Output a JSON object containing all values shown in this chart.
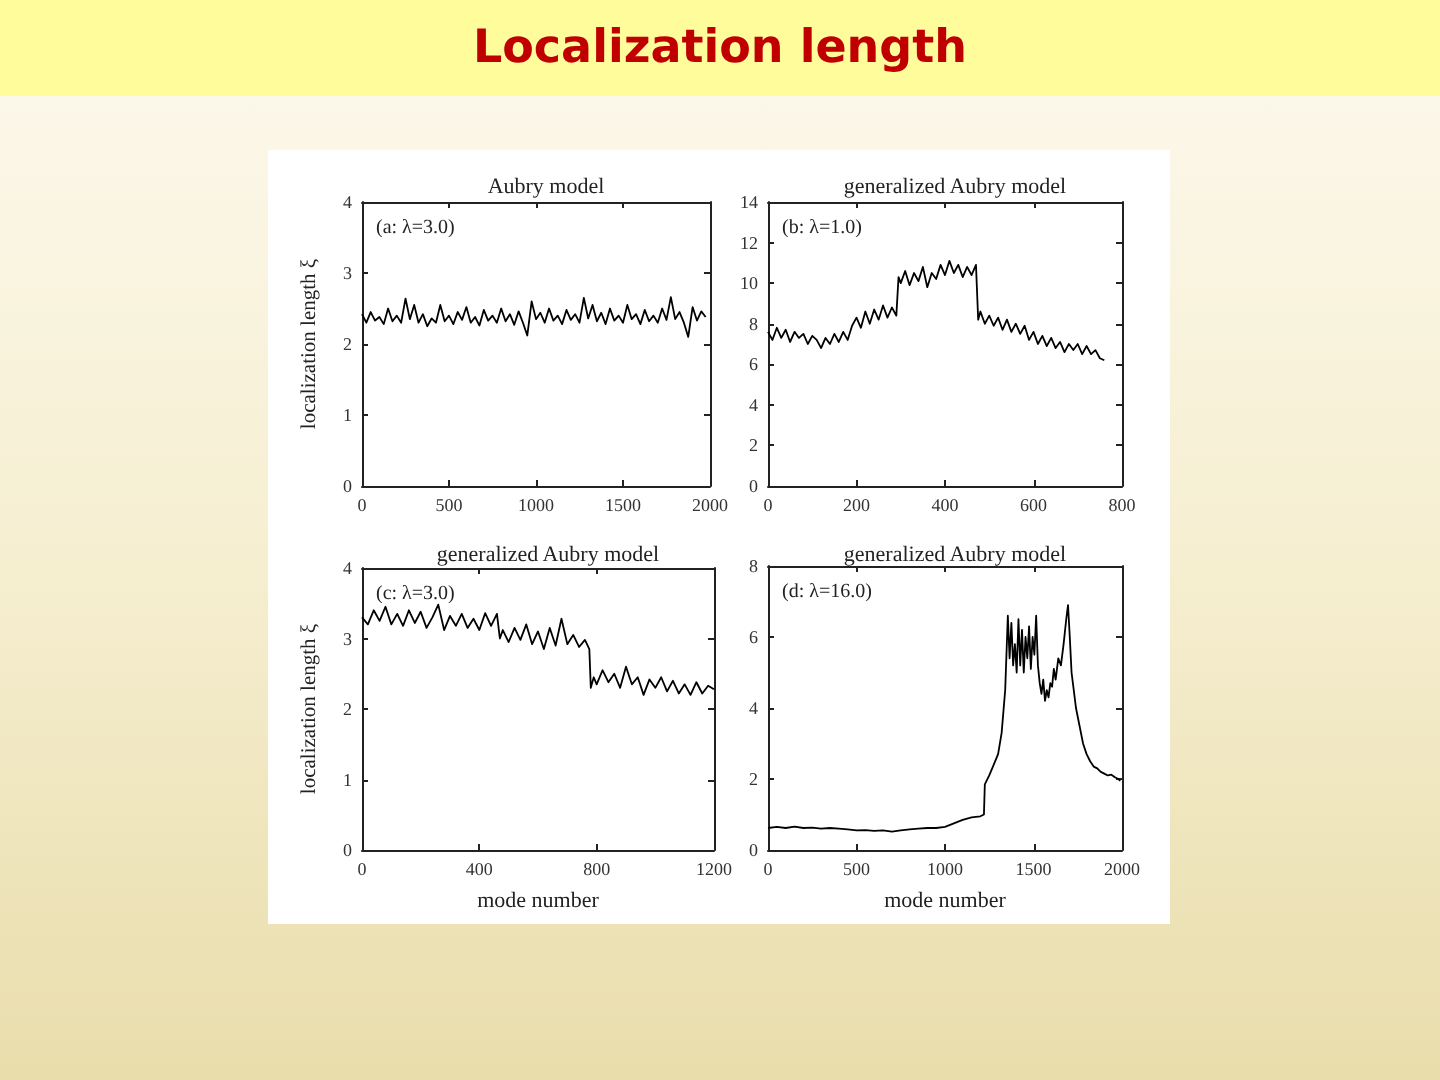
{
  "chart_data": [
    {
      "type": "other",
      "title": "Localization length"
    },
    {
      "type": "line",
      "title": "Aubry model",
      "ylabel": "localization length ξ",
      "annotations": [
        "(a: λ=3.0)"
      ],
      "color": "#000000",
      "xlim": [
        0,
        2000
      ],
      "xticks": [
        0,
        500,
        1000,
        1500,
        2000
      ],
      "ylim": [
        0,
        4
      ],
      "yticks": [
        0,
        1,
        2,
        3,
        4
      ],
      "x": [
        0,
        25,
        50,
        75,
        100,
        125,
        150,
        175,
        200,
        225,
        250,
        275,
        300,
        325,
        350,
        375,
        400,
        425,
        450,
        475,
        500,
        525,
        550,
        575,
        600,
        625,
        650,
        675,
        700,
        725,
        750,
        775,
        800,
        825,
        850,
        875,
        900,
        925,
        950,
        975,
        1000,
        1025,
        1050,
        1075,
        1100,
        1125,
        1150,
        1175,
        1200,
        1225,
        1250,
        1275,
        1300,
        1325,
        1350,
        1375,
        1400,
        1425,
        1450,
        1475,
        1500,
        1525,
        1550,
        1575,
        1600,
        1625,
        1650,
        1675,
        1700,
        1725,
        1750,
        1775,
        1800,
        1825,
        1850,
        1875,
        1900,
        1925,
        1950,
        1975
      ],
      "values": [
        2.42,
        2.3,
        2.45,
        2.33,
        2.38,
        2.28,
        2.5,
        2.32,
        2.4,
        2.3,
        2.64,
        2.35,
        2.55,
        2.3,
        2.42,
        2.25,
        2.36,
        2.3,
        2.55,
        2.32,
        2.4,
        2.28,
        2.45,
        2.34,
        2.52,
        2.3,
        2.38,
        2.26,
        2.48,
        2.33,
        2.4,
        2.3,
        2.5,
        2.32,
        2.42,
        2.27,
        2.46,
        2.3,
        2.12,
        2.6,
        2.35,
        2.44,
        2.3,
        2.5,
        2.33,
        2.4,
        2.28,
        2.48,
        2.34,
        2.42,
        2.3,
        2.65,
        2.36,
        2.55,
        2.32,
        2.44,
        2.28,
        2.5,
        2.33,
        2.4,
        2.3,
        2.55,
        2.35,
        2.42,
        2.28,
        2.48,
        2.32,
        2.4,
        2.3,
        2.5,
        2.34,
        2.66,
        2.35,
        2.45,
        2.3,
        2.1,
        2.52,
        2.33,
        2.46,
        2.38
      ]
    },
    {
      "type": "line",
      "title": "generalized Aubry model",
      "annotations": [
        "(b: λ=1.0)"
      ],
      "color": "#000000",
      "xlim": [
        0,
        800
      ],
      "xticks": [
        0,
        200,
        400,
        600,
        800
      ],
      "ylim": [
        0,
        14
      ],
      "yticks": [
        0,
        2,
        4,
        6,
        8,
        10,
        12,
        14
      ],
      "x": [
        0,
        10,
        20,
        30,
        40,
        50,
        60,
        70,
        80,
        90,
        100,
        110,
        120,
        130,
        140,
        150,
        160,
        170,
        180,
        190,
        200,
        210,
        220,
        230,
        240,
        250,
        260,
        270,
        280,
        290,
        295,
        300,
        310,
        320,
        330,
        340,
        350,
        360,
        370,
        380,
        390,
        400,
        410,
        420,
        430,
        440,
        450,
        460,
        470,
        475,
        480,
        490,
        500,
        510,
        520,
        530,
        540,
        550,
        560,
        570,
        580,
        590,
        600,
        610,
        620,
        630,
        640,
        650,
        660,
        670,
        680,
        690,
        700,
        710,
        720,
        730,
        740,
        750,
        760
      ],
      "values": [
        7.6,
        7.2,
        7.8,
        7.3,
        7.7,
        7.1,
        7.6,
        7.3,
        7.5,
        7,
        7.4,
        7.2,
        6.8,
        7.3,
        7,
        7.5,
        7.1,
        7.6,
        7.2,
        7.9,
        8.3,
        7.8,
        8.6,
        8,
        8.7,
        8.2,
        8.9,
        8.3,
        8.8,
        8.4,
        10.3,
        10,
        10.6,
        9.9,
        10.5,
        10.1,
        10.8,
        9.8,
        10.5,
        10.2,
        10.9,
        10.4,
        11.1,
        10.5,
        10.9,
        10.3,
        10.8,
        10.4,
        10.9,
        8.2,
        8.6,
        8,
        8.4,
        7.9,
        8.3,
        7.7,
        8.2,
        7.6,
        8,
        7.5,
        7.9,
        7.2,
        7.6,
        7,
        7.4,
        6.9,
        7.3,
        6.8,
        7.1,
        6.6,
        7,
        6.7,
        7,
        6.5,
        6.9,
        6.5,
        6.7,
        6.3,
        6.2
      ]
    },
    {
      "type": "line",
      "title": "generalized Aubry model",
      "xlabel": "mode number",
      "ylabel": "localization length ξ",
      "annotations": [
        "(c: λ=3.0)"
      ],
      "color": "#000000",
      "xlim": [
        0,
        1200
      ],
      "xticks": [
        0,
        400,
        800,
        1200
      ],
      "ylim": [
        0,
        4
      ],
      "yticks": [
        0,
        1,
        2,
        3,
        4
      ],
      "x": [
        0,
        20,
        40,
        60,
        80,
        100,
        120,
        140,
        160,
        180,
        200,
        220,
        240,
        260,
        280,
        300,
        320,
        340,
        360,
        380,
        400,
        420,
        440,
        460,
        470,
        480,
        500,
        520,
        540,
        560,
        580,
        600,
        620,
        640,
        660,
        680,
        700,
        720,
        740,
        760,
        775,
        780,
        790,
        800,
        820,
        840,
        860,
        880,
        900,
        920,
        940,
        960,
        980,
        1000,
        1020,
        1040,
        1060,
        1080,
        1100,
        1120,
        1140,
        1160,
        1180,
        1200
      ],
      "values": [
        3.3,
        3.2,
        3.4,
        3.25,
        3.45,
        3.2,
        3.35,
        3.18,
        3.4,
        3.22,
        3.38,
        3.15,
        3.3,
        3.48,
        3.12,
        3.32,
        3.18,
        3.35,
        3.15,
        3.28,
        3.12,
        3.36,
        3.18,
        3.35,
        3,
        3.12,
        2.95,
        3.15,
        2.98,
        3.2,
        2.92,
        3.1,
        2.85,
        3.15,
        2.9,
        3.28,
        2.92,
        3.05,
        2.88,
        2.98,
        2.85,
        2.3,
        2.45,
        2.35,
        2.55,
        2.38,
        2.5,
        2.3,
        2.6,
        2.35,
        2.45,
        2.2,
        2.42,
        2.3,
        2.45,
        2.25,
        2.4,
        2.22,
        2.35,
        2.2,
        2.38,
        2.22,
        2.33,
        2.28
      ]
    },
    {
      "type": "line",
      "title": "generalized Aubry model",
      "xlabel": "mode number",
      "annotations": [
        "(d: λ=16.0)"
      ],
      "color": "#000000",
      "xlim": [
        0,
        2000
      ],
      "xticks": [
        0,
        500,
        1000,
        1500,
        2000
      ],
      "ylim": [
        0,
        8
      ],
      "yticks": [
        0,
        2,
        4,
        6,
        8
      ],
      "x": [
        0,
        50,
        100,
        150,
        200,
        250,
        300,
        350,
        400,
        450,
        500,
        550,
        600,
        650,
        700,
        750,
        800,
        850,
        900,
        950,
        1000,
        1050,
        1100,
        1150,
        1200,
        1220,
        1225,
        1250,
        1275,
        1300,
        1320,
        1340,
        1355,
        1365,
        1375,
        1385,
        1395,
        1405,
        1415,
        1425,
        1435,
        1445,
        1455,
        1465,
        1475,
        1485,
        1495,
        1505,
        1515,
        1525,
        1535,
        1545,
        1555,
        1565,
        1575,
        1585,
        1595,
        1605,
        1615,
        1625,
        1640,
        1655,
        1670,
        1685,
        1695,
        1705,
        1715,
        1725,
        1740,
        1760,
        1780,
        1800,
        1820,
        1840,
        1860,
        1880,
        1900,
        1920,
        1940,
        1960,
        1980,
        1990
      ],
      "values": [
        0.62,
        0.65,
        0.62,
        0.66,
        0.62,
        0.63,
        0.6,
        0.62,
        0.6,
        0.58,
        0.55,
        0.56,
        0.54,
        0.55,
        0.52,
        0.55,
        0.58,
        0.6,
        0.62,
        0.62,
        0.65,
        0.75,
        0.85,
        0.92,
        0.95,
        1,
        1.85,
        2.1,
        2.4,
        2.7,
        3.3,
        4.5,
        6.6,
        5.4,
        6.4,
        5.2,
        5.8,
        5,
        6.5,
        5.2,
        6.2,
        5,
        6,
        5.4,
        6.3,
        5.1,
        6,
        5.5,
        6.6,
        5.2,
        4.7,
        4.4,
        4.8,
        4.2,
        4.5,
        4.3,
        4.7,
        4.6,
        5.1,
        4.8,
        5.4,
        5.2,
        5.8,
        6.5,
        6.9,
        6,
        5,
        4.6,
        4,
        3.5,
        3,
        2.7,
        2.5,
        2.35,
        2.3,
        2.2,
        2.15,
        2.1,
        2.12,
        2.05,
        2,
        1.95
      ]
    }
  ]
}
